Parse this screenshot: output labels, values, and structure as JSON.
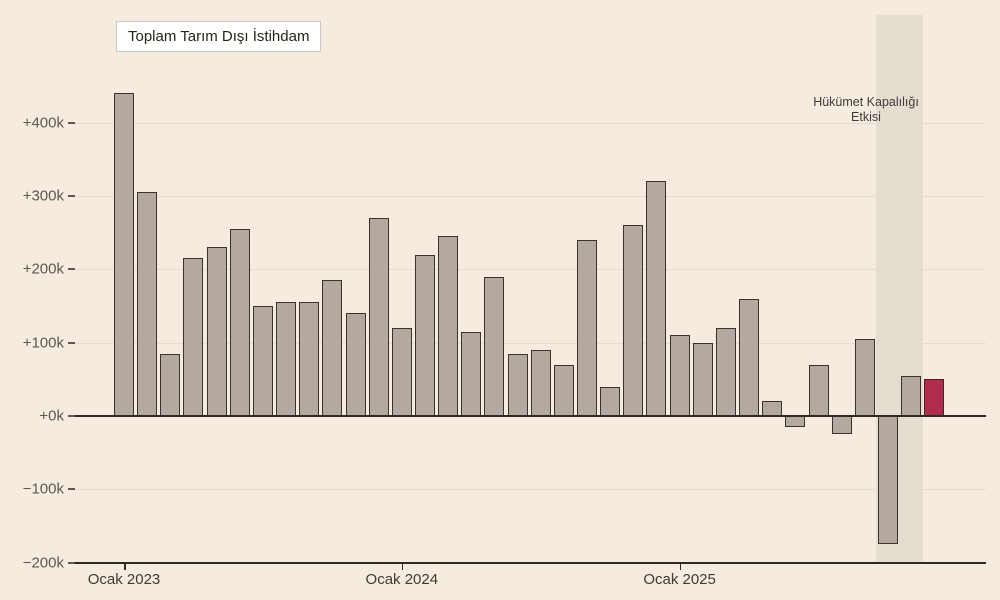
{
  "title": "Toplam Tarım Dışı İstihdam",
  "annotation": {
    "line1": "Hükümet Kapalılığı",
    "line2": "Etkisi"
  },
  "chart_data": {
    "type": "bar",
    "title": "Toplam Tarım Dışı İstihdam",
    "unit": "k (thousands), monthly change",
    "values_k": [
      440,
      305,
      85,
      215,
      230,
      255,
      150,
      155,
      155,
      185,
      140,
      270,
      120,
      220,
      245,
      115,
      190,
      85,
      90,
      70,
      240,
      40,
      260,
      320,
      110,
      100,
      120,
      160,
      20,
      -15,
      70,
      -25,
      105,
      -175,
      55,
      50
    ],
    "x_tick_labels": [
      "Ocak 2023",
      "Ocak 2024",
      "Ocak 2025"
    ],
    "x_tick_bar_indices": [
      0,
      12,
      24
    ],
    "y_tick_labels": [
      "+400k",
      "+300k",
      "+200k",
      "+100k",
      "+0k",
      "−100k",
      "−200k"
    ],
    "y_tick_values": [
      400,
      300,
      200,
      100,
      0,
      -100,
      -200
    ],
    "ylim": [
      -200,
      460
    ],
    "grid": true,
    "legend_position": "none",
    "annotation_text_lines": [
      "Hükümet Kapalılığı",
      "Etkisi"
    ],
    "highlight_band_bar_indices": [
      33,
      34
    ],
    "red_bar_index": 35,
    "colors": {
      "background": "#f5ebdf",
      "bar_fill": "#b3a9a1",
      "bar_edge": "#3a332d",
      "red_bar_fill": "#b02c4c",
      "red_bar_edge": "#4c1f2a",
      "band_fill": "#e6ddd1",
      "gridline": "#e7dbcd",
      "axis_line": "#2e2925",
      "y_tick_text": "#5d5852",
      "x_tick_text": "#3e3a35",
      "annotation_text": "#3d3d3d"
    }
  }
}
